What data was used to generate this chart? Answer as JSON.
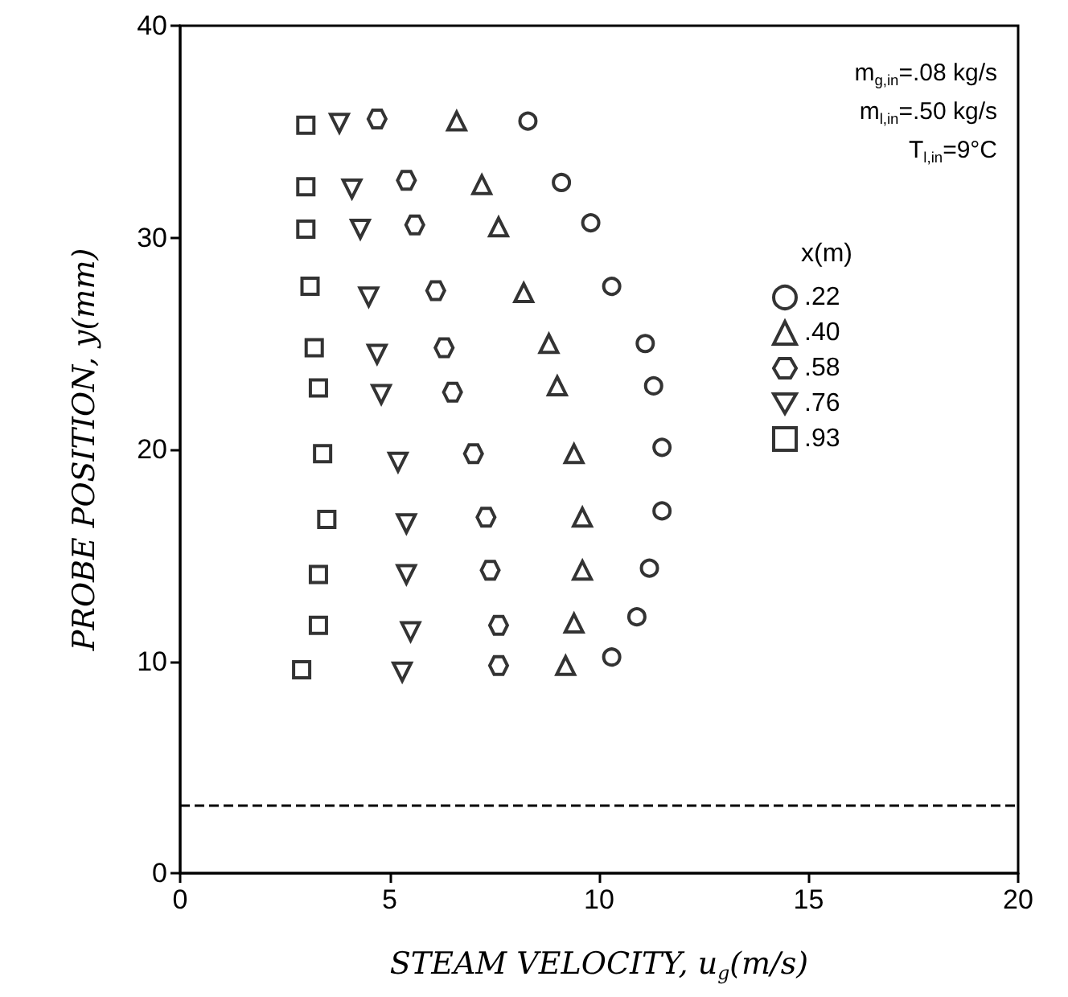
{
  "chart_data": {
    "type": "scatter",
    "xlabel": "STEAM VELOCITY, u$_{g}$(m/s)",
    "ylabel": "PROBE POSITION, y(mm)",
    "legend_title": "x(m)",
    "annotations": [
      "m$_{g,in}$=.08 kg/s",
      "m$_{l,in}$=.50 kg/s",
      "T$_{l,in}$=9°C"
    ],
    "xlim": [
      0,
      20
    ],
    "xticks": [
      0,
      5,
      10,
      15,
      20
    ],
    "ylim": [
      0,
      40
    ],
    "yticks": [
      0,
      10,
      20,
      30,
      40
    ],
    "grid": false,
    "legend": "top right",
    "ref_lines": [
      {
        "axis": "y",
        "value": 3.2,
        "line_style": "dashed",
        "color": "#000000"
      }
    ],
    "series": [
      {
        "name": ".22",
        "color": "#000000",
        "marker": "circle",
        "x": [
          8.3,
          9.1,
          9.8,
          10.3,
          11.1,
          11.3,
          11.5,
          11.5,
          11.2,
          10.9,
          10.3
        ],
        "values": [
          35.5,
          32.6,
          30.7,
          27.7,
          25.0,
          23.0,
          20.1,
          17.1,
          14.4,
          12.1,
          10.2
        ]
      },
      {
        "name": ".40",
        "color": "#000000",
        "marker": "triangle",
        "x": [
          6.6,
          7.2,
          7.6,
          8.2,
          8.8,
          9.0,
          9.4,
          9.6,
          9.6,
          9.4,
          9.2
        ],
        "values": [
          35.5,
          32.5,
          30.5,
          27.4,
          25.0,
          23.0,
          19.8,
          16.8,
          14.3,
          11.8,
          9.8
        ]
      },
      {
        "name": ".58",
        "color": "#000000",
        "x": [
          4.7,
          5.4,
          5.6,
          6.1,
          6.3,
          6.5,
          7.0,
          7.3,
          7.4,
          7.6,
          7.6
        ],
        "values": [
          35.6,
          32.7,
          30.6,
          27.5,
          24.8,
          22.7,
          19.8,
          16.8,
          14.3,
          11.7,
          9.8
        ]
      },
      {
        "name": ".76",
        "color": "#000000",
        "x": [
          3.8,
          4.1,
          4.3,
          4.5,
          4.7,
          4.8,
          5.2,
          5.4,
          5.4,
          5.5,
          5.3
        ],
        "values": [
          35.4,
          32.3,
          30.4,
          27.2,
          24.5,
          22.6,
          19.4,
          16.5,
          14.1,
          11.4,
          9.5
        ]
      },
      {
        "name": ".93",
        "color": "#000000",
        "marker": "square",
        "x": [
          3.0,
          3.0,
          3.0,
          3.1,
          3.2,
          3.3,
          3.4,
          3.5,
          3.3,
          3.3,
          2.9
        ],
        "values": [
          35.3,
          32.4,
          30.4,
          27.7,
          24.8,
          22.9,
          19.8,
          16.7,
          14.1,
          11.7,
          9.6
        ]
      }
    ]
  }
}
